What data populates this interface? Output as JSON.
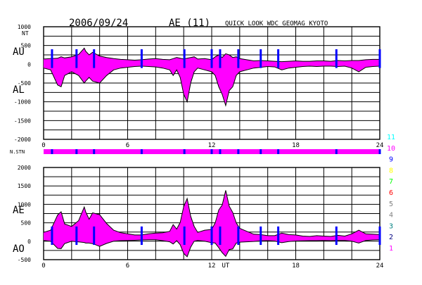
{
  "header": {
    "date": "2006/09/24",
    "index": "AE (11)",
    "source": "QUICK LOOK  WDC GEOMAG KYOTO"
  },
  "colors": {
    "fill": "#ff00ff",
    "dropout": "#0000ff",
    "envelope": "#000000",
    "grid": "#000000",
    "stations": [
      "#000000",
      "#ff00ff",
      "#000080",
      "#008080",
      "#808080",
      "#808080",
      "#ff0000",
      "#00ff00",
      "#ffff00",
      "#0000ff",
      "#ff00ff",
      "#00ffff"
    ]
  },
  "chart_data": [
    {
      "type": "area",
      "name": "AU/AL panel",
      "labels": {
        "unit": "NT",
        "upper": "AU",
        "lower": "AL"
      },
      "ylim": [
        -2000,
        1000
      ],
      "yticks": [
        1000,
        500,
        0,
        -500,
        -1000,
        -1500,
        -2000
      ],
      "xlim": [
        0,
        24
      ],
      "xticks": [
        0,
        6,
        12,
        18,
        24
      ],
      "grid": true,
      "x": [
        0,
        0.5,
        1,
        1.25,
        1.5,
        2,
        2.5,
        2.9,
        3,
        3.25,
        3.5,
        4,
        4.5,
        5,
        5.5,
        6,
        6.5,
        7,
        7.5,
        8,
        8.5,
        9,
        9.25,
        9.5,
        9.75,
        10,
        10.25,
        10.5,
        10.75,
        11,
        11.5,
        12,
        12.25,
        12.5,
        12.75,
        13,
        13.25,
        13.5,
        13.75,
        14,
        14.5,
        15,
        15.5,
        16,
        16.5,
        17,
        17.5,
        18,
        18.5,
        19,
        19.5,
        20,
        20.5,
        21,
        21.5,
        22,
        22.5,
        23,
        23.5,
        24
      ],
      "series": [
        {
          "name": "AU",
          "values": [
            140,
            150,
            160,
            200,
            170,
            200,
            260,
            430,
            350,
            250,
            320,
            220,
            180,
            150,
            130,
            120,
            110,
            120,
            140,
            150,
            130,
            120,
            150,
            180,
            160,
            140,
            160,
            180,
            200,
            140,
            150,
            120,
            200,
            250,
            180,
            280,
            250,
            180,
            200,
            150,
            120,
            90,
            100,
            90,
            80,
            70,
            80,
            90,
            80,
            80,
            90,
            90,
            80,
            100,
            90,
            100,
            100,
            120,
            130,
            130
          ]
        },
        {
          "name": "AL",
          "values": [
            -100,
            -150,
            -550,
            -600,
            -300,
            -200,
            -300,
            -500,
            -450,
            -350,
            -450,
            -500,
            -300,
            -150,
            -100,
            -80,
            -60,
            -50,
            -60,
            -70,
            -100,
            -150,
            -300,
            -150,
            -350,
            -800,
            -1000,
            -500,
            -200,
            -100,
            -150,
            -200,
            -300,
            -600,
            -800,
            -1100,
            -700,
            -600,
            -300,
            -200,
            -150,
            -100,
            -80,
            -60,
            -70,
            -150,
            -100,
            -80,
            -60,
            -50,
            -60,
            -50,
            -50,
            -60,
            -50,
            -100,
            -200,
            -80,
            -60,
            -50
          ]
        }
      ]
    },
    {
      "type": "area",
      "name": "AE/AO panel",
      "labels": {
        "upper": "AE",
        "lower": "AO"
      },
      "ylim": [
        -500,
        2000
      ],
      "yticks": [
        2000,
        1500,
        1000,
        500,
        0,
        -500
      ],
      "xlim": [
        0,
        24
      ],
      "xticks": [
        0,
        6,
        12,
        18,
        24
      ],
      "xlabel": "UT",
      "grid": true,
      "x": [
        0,
        0.5,
        1,
        1.25,
        1.5,
        2,
        2.5,
        2.9,
        3,
        3.25,
        3.5,
        4,
        4.5,
        5,
        5.5,
        6,
        6.5,
        7,
        7.5,
        8,
        8.5,
        9,
        9.25,
        9.5,
        9.75,
        10,
        10.25,
        10.5,
        10.75,
        11,
        11.5,
        12,
        12.25,
        12.5,
        12.75,
        13,
        13.25,
        13.5,
        13.75,
        14,
        14.5,
        15,
        15.5,
        16,
        16.5,
        17,
        17.5,
        18,
        18.5,
        19,
        19.5,
        20,
        20.5,
        21,
        21.5,
        22,
        22.5,
        23,
        23.5,
        24
      ],
      "series": [
        {
          "name": "AE",
          "values": [
            240,
            300,
            710,
            800,
            470,
            400,
            560,
            930,
            800,
            600,
            770,
            720,
            480,
            300,
            230,
            200,
            170,
            170,
            200,
            220,
            230,
            270,
            450,
            330,
            510,
            940,
            1160,
            680,
            400,
            240,
            300,
            320,
            500,
            850,
            980,
            1380,
            950,
            780,
            500,
            350,
            270,
            190,
            180,
            150,
            150,
            220,
            180,
            170,
            140,
            130,
            150,
            140,
            130,
            160,
            140,
            200,
            300,
            200,
            190,
            180
          ]
        },
        {
          "name": "AO",
          "values": [
            20,
            0,
            -195,
            -200,
            -65,
            0,
            -20,
            -35,
            -50,
            -50,
            -65,
            -140,
            -60,
            0,
            15,
            20,
            25,
            35,
            40,
            40,
            15,
            -15,
            -75,
            15,
            -95,
            -330,
            -420,
            -160,
            0,
            20,
            0,
            -40,
            -50,
            -175,
            -310,
            -410,
            -225,
            -210,
            -50,
            -25,
            -15,
            -5,
            10,
            15,
            5,
            -40,
            -10,
            5,
            10,
            15,
            15,
            20,
            15,
            20,
            20,
            0,
            -50,
            20,
            35,
            40
          ]
        }
      ]
    }
  ],
  "nstn": {
    "label": "N.STN",
    "value": 10,
    "dropout_hours": [
      0.6,
      2.35,
      3.6,
      7.0,
      10.05,
      12.0,
      12.6,
      13.9,
      15.5,
      16.75,
      20.9,
      24.0
    ]
  },
  "station_count_scale": {
    "levels": [
      "11",
      "10",
      "9",
      "8",
      "7",
      "6",
      "5",
      "4",
      "3",
      "2",
      "1"
    ]
  }
}
